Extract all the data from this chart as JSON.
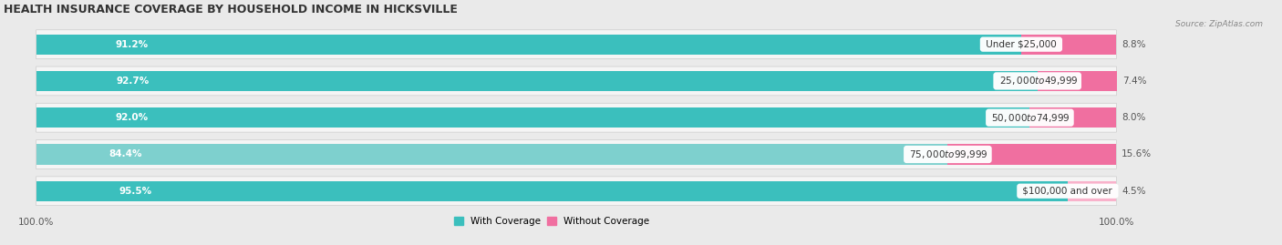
{
  "title": "HEALTH INSURANCE COVERAGE BY HOUSEHOLD INCOME IN HICKSVILLE",
  "source": "Source: ZipAtlas.com",
  "categories": [
    "Under $25,000",
    "$25,000 to $49,999",
    "$50,000 to $74,999",
    "$75,000 to $99,999",
    "$100,000 and over"
  ],
  "with_coverage": [
    91.2,
    92.7,
    92.0,
    84.4,
    95.5
  ],
  "without_coverage": [
    8.8,
    7.4,
    8.0,
    15.6,
    4.5
  ],
  "color_with": "#3BBFBD",
  "color_with_light": "#7ED0CE",
  "color_without": "#F06FA0",
  "color_without_light": "#F9B2CB",
  "bg_color": "#eaeaea",
  "row_bg_color": "#f5f5f5",
  "title_fontsize": 9,
  "label_fontsize": 7.5,
  "tick_fontsize": 7.5,
  "legend_fontsize": 7.5,
  "bar_height": 0.55,
  "total_width": 100
}
